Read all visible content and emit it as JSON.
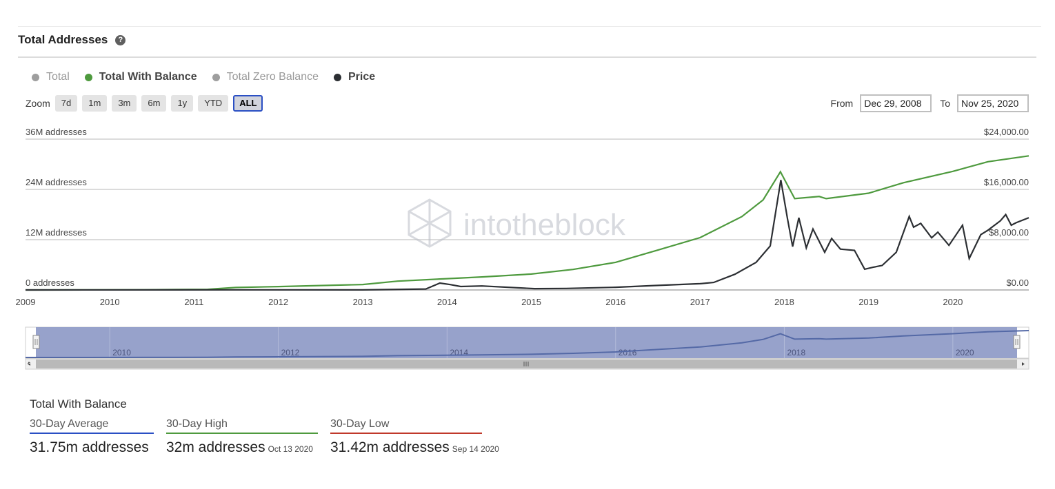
{
  "header": {
    "title": "Total Addresses",
    "help_glyph": "?"
  },
  "legend": [
    {
      "label": "Total",
      "color": "#9e9e9e",
      "active": false
    },
    {
      "label": "Total With Balance",
      "color": "#4e9a3e",
      "active": true
    },
    {
      "label": "Total Zero Balance",
      "color": "#9e9e9e",
      "active": false
    },
    {
      "label": "Price",
      "color": "#2c2f33",
      "active": true
    }
  ],
  "zoom": {
    "label": "Zoom",
    "buttons": [
      "7d",
      "1m",
      "3m",
      "6m",
      "1y",
      "YTD",
      "ALL"
    ],
    "selected": "ALL"
  },
  "range": {
    "from_label": "From",
    "from_value": "Dec 29, 2008",
    "to_label": "To",
    "to_value": "Nov 25, 2020"
  },
  "watermark": {
    "text": "intotheblock",
    "icon": "cube-logo-icon"
  },
  "navigator": {
    "labels": [
      "2010",
      "2012",
      "2014",
      "2016",
      "2018",
      "2020"
    ],
    "grip_icon": "drag-grip-icon"
  },
  "chart_data": {
    "type": "line",
    "x_range": [
      "2009-01-01",
      "2020-11-25"
    ],
    "x_ticks": [
      "2009",
      "2010",
      "2011",
      "2012",
      "2013",
      "2014",
      "2015",
      "2016",
      "2017",
      "2018",
      "2019",
      "2020"
    ],
    "y_left": {
      "range": [
        0,
        36000000
      ],
      "ticks": [
        0,
        12000000,
        24000000,
        36000000
      ],
      "tick_labels": [
        "0 addresses",
        "12M addresses",
        "24M addresses",
        "36M addresses"
      ]
    },
    "y_right": {
      "range": [
        0,
        24000
      ],
      "ticks": [
        0,
        8000,
        16000,
        24000
      ],
      "tick_labels": [
        "$0.00",
        "$8,000.00",
        "$16,000.00",
        "$24,000.00"
      ]
    },
    "grid": true,
    "series": [
      {
        "name": "Total With Balance",
        "axis": "left",
        "color": "#4e9a3e",
        "points": [
          [
            "2009-01-01",
            0
          ],
          [
            "2010-06-01",
            50000
          ],
          [
            "2011-03-01",
            150000
          ],
          [
            "2011-07-01",
            600000
          ],
          [
            "2012-01-01",
            800000
          ],
          [
            "2013-01-01",
            1300000
          ],
          [
            "2013-06-01",
            2100000
          ],
          [
            "2014-01-01",
            2700000
          ],
          [
            "2014-06-01",
            3100000
          ],
          [
            "2015-01-01",
            3800000
          ],
          [
            "2015-07-01",
            4900000
          ],
          [
            "2016-01-01",
            6600000
          ],
          [
            "2016-07-01",
            9500000
          ],
          [
            "2017-01-01",
            12500000
          ],
          [
            "2017-07-01",
            17500000
          ],
          [
            "2017-10-01",
            21500000
          ],
          [
            "2017-12-15",
            28200000
          ],
          [
            "2018-01-15",
            25000000
          ],
          [
            "2018-02-15",
            21800000
          ],
          [
            "2018-06-01",
            22300000
          ],
          [
            "2018-07-01",
            21800000
          ],
          [
            "2019-01-01",
            23100000
          ],
          [
            "2019-06-01",
            25600000
          ],
          [
            "2020-01-01",
            28300000
          ],
          [
            "2020-06-01",
            30600000
          ],
          [
            "2020-11-25",
            32000000
          ]
        ]
      },
      {
        "name": "Price",
        "axis": "right",
        "color": "#2c2f33",
        "points": [
          [
            "2009-01-01",
            0
          ],
          [
            "2011-06-01",
            20
          ],
          [
            "2013-01-01",
            13
          ],
          [
            "2013-10-01",
            150
          ],
          [
            "2013-12-01",
            1100
          ],
          [
            "2014-01-15",
            850
          ],
          [
            "2014-03-01",
            550
          ],
          [
            "2014-06-01",
            640
          ],
          [
            "2015-01-15",
            210
          ],
          [
            "2015-06-01",
            240
          ],
          [
            "2016-01-01",
            430
          ],
          [
            "2016-06-15",
            700
          ],
          [
            "2017-01-01",
            1000
          ],
          [
            "2017-03-01",
            1200
          ],
          [
            "2017-06-01",
            2500
          ],
          [
            "2017-09-01",
            4400
          ],
          [
            "2017-11-01",
            7000
          ],
          [
            "2017-12-17",
            17500
          ],
          [
            "2018-01-15",
            11300
          ],
          [
            "2018-02-06",
            6900
          ],
          [
            "2018-03-05",
            11500
          ],
          [
            "2018-04-06",
            6700
          ],
          [
            "2018-05-05",
            9700
          ],
          [
            "2018-06-25",
            6000
          ],
          [
            "2018-07-25",
            8200
          ],
          [
            "2018-09-01",
            6500
          ],
          [
            "2018-11-01",
            6300
          ],
          [
            "2018-12-15",
            3300
          ],
          [
            "2019-01-20",
            3600
          ],
          [
            "2019-03-01",
            3900
          ],
          [
            "2019-05-01",
            6000
          ],
          [
            "2019-06-26",
            11700
          ],
          [
            "2019-07-15",
            10000
          ],
          [
            "2019-08-15",
            10600
          ],
          [
            "2019-10-01",
            8300
          ],
          [
            "2019-10-28",
            9200
          ],
          [
            "2019-12-15",
            7100
          ],
          [
            "2020-02-12",
            10300
          ],
          [
            "2020-03-12",
            5000
          ],
          [
            "2020-05-01",
            8800
          ],
          [
            "2020-06-01",
            9500
          ],
          [
            "2020-07-25",
            11000
          ],
          [
            "2020-08-17",
            12000
          ],
          [
            "2020-09-10",
            10300
          ],
          [
            "2020-10-01",
            10700
          ],
          [
            "2020-11-25",
            11500
          ]
        ]
      }
    ]
  },
  "stats": {
    "title": "Total With Balance",
    "items": [
      {
        "label": "30-Day Average",
        "value": "31.75m addresses",
        "date": "",
        "color": "#2a4fc4"
      },
      {
        "label": "30-Day High",
        "value": "32m addresses",
        "date": "Oct 13 2020",
        "color": "#4e9a3e"
      },
      {
        "label": "30-Day Low",
        "value": "31.42m addresses",
        "date": "Sep 14 2020",
        "color": "#c0392b"
      }
    ]
  }
}
